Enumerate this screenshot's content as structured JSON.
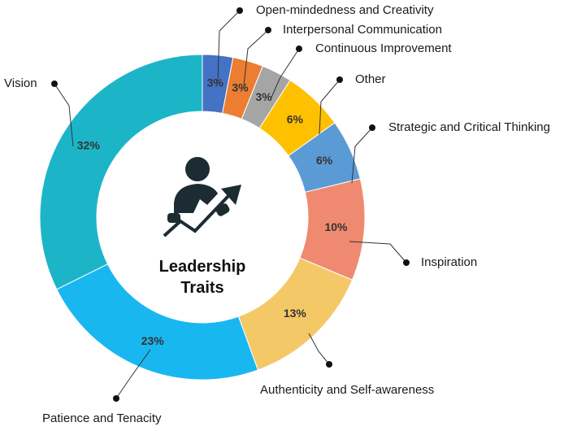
{
  "chart_data": {
    "type": "donut",
    "title": "Leadership Traits",
    "categories": [
      "Open-mindedness and Creativity",
      "Interpersonal Communication",
      "Continuous Improvement",
      "Other",
      "Strategic and Critical Thinking",
      "Inspiration",
      "Authenticity and Self-awareness",
      "Patience and Tenacity",
      "Vision"
    ],
    "values": [
      3,
      3,
      3,
      6,
      6,
      10,
      13,
      23,
      32
    ],
    "value_labels": [
      "3%",
      "3%",
      "3%",
      "6%",
      "6%",
      "10%",
      "13%",
      "23%",
      "32%"
    ],
    "colors": [
      "#4472c4",
      "#ed7d31",
      "#a5a5a5",
      "#ffc000",
      "#5b9bd5",
      "#ef8a70",
      "#f4c867",
      "#19b7f0",
      "#1cb5c8"
    ]
  }
}
